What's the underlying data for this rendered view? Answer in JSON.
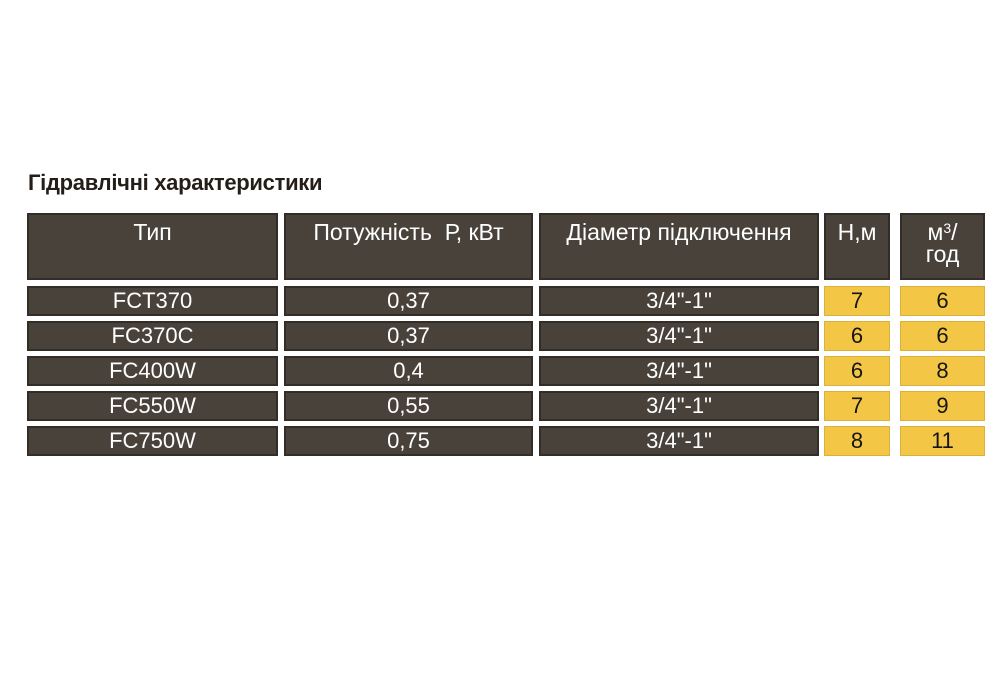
{
  "title": "Гідравлічні характеристики",
  "colors": {
    "cell_dark": "#48423b",
    "cell_border_dark": "#332d27",
    "cell_yellow": "#f3c645",
    "text_on_dark": "#ffffff",
    "text_on_yellow": "#151515",
    "title_text": "#241e19",
    "page_background": "#ffffff"
  },
  "table": {
    "headers": [
      "Тип",
      "Потужність  Р, кВт",
      "Діаметр підключення",
      "Н,м",
      {
        "display": "м³/год",
        "parts": {
          "base": "м",
          "sup": "3",
          "slash": "/",
          "line2": "год"
        }
      }
    ],
    "rows": [
      {
        "type": "FCT370",
        "power": "0,37",
        "diameter": "3/4\"-1\"",
        "head": "7",
        "flow": "6"
      },
      {
        "type": "FC370C",
        "power": "0,37",
        "diameter": "3/4\"-1\"",
        "head": "6",
        "flow": "6"
      },
      {
        "type": "FC400W",
        "power": "0,4",
        "diameter": "3/4\"-1\"",
        "head": "6",
        "flow": "8"
      },
      {
        "type": "FC550W",
        "power": "0,55",
        "diameter": "3/4\"-1\"",
        "head": "7",
        "flow": "9"
      },
      {
        "type": "FC750W",
        "power": "0,75",
        "diameter": "3/4\"-1\"",
        "head": "8",
        "flow": "11"
      }
    ]
  },
  "chart_data": {
    "type": "table",
    "title": "Гідравлічні характеристики",
    "columns": [
      "Тип",
      "Потужність Р, кВт",
      "Діаметр підключення",
      "Н,м",
      "м³/год"
    ],
    "rows": [
      [
        "FCT370",
        "0,37",
        "3/4\"-1\"",
        7,
        6
      ],
      [
        "FC370C",
        "0,37",
        "3/4\"-1\"",
        6,
        6
      ],
      [
        "FC400W",
        "0,4",
        "3/4\"-1\"",
        6,
        8
      ],
      [
        "FC550W",
        "0,55",
        "3/4\"-1\"",
        7,
        9
      ],
      [
        "FC750W",
        "0,75",
        "3/4\"-1\"",
        8,
        11
      ]
    ]
  }
}
